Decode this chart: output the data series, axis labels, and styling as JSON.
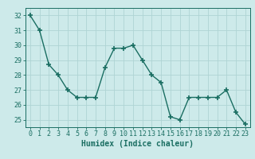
{
  "x": [
    0,
    1,
    2,
    3,
    4,
    5,
    6,
    7,
    8,
    9,
    10,
    11,
    12,
    13,
    14,
    15,
    16,
    17,
    18,
    19,
    20,
    21,
    22,
    23
  ],
  "y": [
    32,
    31,
    28.7,
    28.0,
    27.0,
    26.5,
    26.5,
    26.5,
    28.5,
    29.8,
    29.8,
    30.0,
    29.0,
    28.0,
    27.5,
    25.2,
    25.0,
    26.5,
    26.5,
    26.5,
    26.5,
    27.0,
    25.5,
    24.7
  ],
  "line_color": "#1a6e62",
  "marker": "+",
  "marker_size": 4,
  "marker_lw": 1.2,
  "bg_color": "#cdeaea",
  "grid_color": "#afd4d4",
  "xlabel": "Humidex (Indice chaleur)",
  "xlim": [
    -0.5,
    23.5
  ],
  "ylim": [
    24.5,
    32.5
  ],
  "yticks": [
    25,
    26,
    27,
    28,
    29,
    30,
    31,
    32
  ],
  "xticks": [
    0,
    1,
    2,
    3,
    4,
    5,
    6,
    7,
    8,
    9,
    10,
    11,
    12,
    13,
    14,
    15,
    16,
    17,
    18,
    19,
    20,
    21,
    22,
    23
  ],
  "xlabel_fontsize": 7,
  "tick_fontsize": 6,
  "line_width": 1.0
}
